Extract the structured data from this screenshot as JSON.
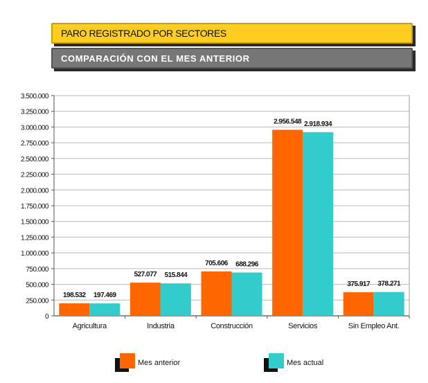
{
  "header": {
    "title": "PARO REGISTRADO POR SECTORES",
    "subtitle": "COMPARACIÓN CON EL MES ANTERIOR"
  },
  "colors": {
    "title_bg": "#ffcc22",
    "subtitle_bg": "#777777",
    "series_1": "#ff6600",
    "series_2": "#33cccc"
  },
  "chart_data": {
    "type": "bar",
    "categories": [
      "Agricultura",
      "Industria",
      "Construcción",
      "Servicios",
      "Sin Empleo Ant."
    ],
    "series": [
      {
        "name": "Mes anterior",
        "values": [
          198532,
          527077,
          705606,
          2956548,
          375917
        ],
        "labels": [
          "198.532",
          "527.077",
          "705.606",
          "2.956.548",
          "375.917"
        ]
      },
      {
        "name": "Mes actual",
        "values": [
          197469,
          515844,
          688296,
          2918934,
          378271
        ],
        "labels": [
          "197.469",
          "515.844",
          "688.296",
          "2.918.934",
          "378.271"
        ]
      }
    ],
    "ylim": [
      0,
      3500000
    ],
    "yticks": [
      0,
      250000,
      500000,
      750000,
      1000000,
      1250000,
      1500000,
      1750000,
      2000000,
      2250000,
      2500000,
      2750000,
      3000000,
      3250000,
      3500000
    ],
    "ytick_labels": [
      "0",
      "250.000",
      "500.000",
      "750.000",
      "1.000.000",
      "1.250.000",
      "1.500.000",
      "1.750.000",
      "2.000.000",
      "2.250.000",
      "2.500.000",
      "2.750.000",
      "3.000.000",
      "3.250.000",
      "3.500.000"
    ],
    "grid": true,
    "legend": "bottom"
  },
  "legend": {
    "item_1": "Mes anterior",
    "item_2": "Mes actual"
  }
}
